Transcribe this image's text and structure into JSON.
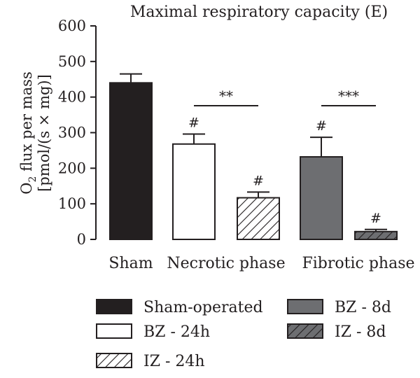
{
  "chart_data": {
    "type": "bar",
    "title": "Maximal respiratory capacity (E)",
    "ylabel_line1_main": "O",
    "ylabel_line1_sub": "2",
    "ylabel_line1_rest": " flux per mass",
    "ylabel_line2": "[pmol/(s × mg)]",
    "ylim": [
      0,
      600
    ],
    "yticks": [
      "0",
      "100",
      "200",
      "300",
      "400",
      "500",
      "600"
    ],
    "group_labels": [
      "Sham",
      "Necrotic phase",
      "Fibrotic phase"
    ],
    "bars": [
      {
        "series": "Sham-operated",
        "group": "Sham",
        "value": 440,
        "error": 25,
        "mark": "",
        "fill": "#231f20",
        "pattern": "solid"
      },
      {
        "series": "BZ - 24h",
        "group": "Necrotic phase",
        "value": 268,
        "error": 28,
        "mark": "#",
        "fill": "#ffffff",
        "pattern": "solid"
      },
      {
        "series": "IZ - 24h",
        "group": "Necrotic phase",
        "value": 117,
        "error": 16,
        "mark": "#",
        "fill": "#ffffff",
        "pattern": "hatch-light"
      },
      {
        "series": "BZ - 8d",
        "group": "Fibrotic phase",
        "value": 232,
        "error": 55,
        "mark": "#",
        "fill": "#6d6e71",
        "pattern": "solid"
      },
      {
        "series": "IZ - 8d",
        "group": "Fibrotic phase",
        "value": 22,
        "error": 6,
        "mark": "#",
        "fill": "#6d6e71",
        "pattern": "hatch-dark"
      }
    ],
    "significance": [
      {
        "label": "**",
        "from_bar": 1,
        "to_bar": 2
      },
      {
        "label": "***",
        "from_bar": 3,
        "to_bar": 4
      }
    ],
    "legend": [
      {
        "label": "Sham-operated",
        "fill": "#231f20",
        "pattern": "solid"
      },
      {
        "label": "BZ - 8d",
        "fill": "#6d6e71",
        "pattern": "solid"
      },
      {
        "label": "BZ - 24h",
        "fill": "#ffffff",
        "pattern": "solid"
      },
      {
        "label": "IZ - 8d",
        "fill": "#6d6e71",
        "pattern": "hatch-dark"
      },
      {
        "label": "IZ - 24h",
        "fill": "#ffffff",
        "pattern": "hatch-light"
      }
    ]
  }
}
